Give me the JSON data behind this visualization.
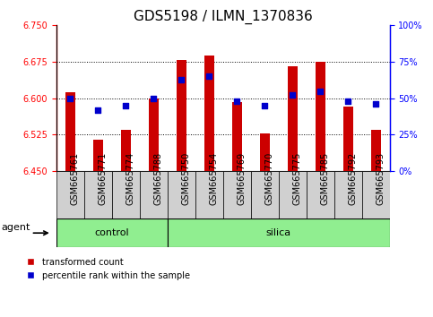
{
  "title": "GDS5198 / ILMN_1370836",
  "samples": [
    "GSM665761",
    "GSM665771",
    "GSM665774",
    "GSM665788",
    "GSM665750",
    "GSM665754",
    "GSM665769",
    "GSM665770",
    "GSM665775",
    "GSM665785",
    "GSM665792",
    "GSM665793"
  ],
  "groups": [
    "control",
    "control",
    "control",
    "control",
    "silica",
    "silica",
    "silica",
    "silica",
    "silica",
    "silica",
    "silica",
    "silica"
  ],
  "transformed_count": [
    6.612,
    6.515,
    6.535,
    6.6,
    6.678,
    6.688,
    6.592,
    6.528,
    6.665,
    6.675,
    6.583,
    6.535
  ],
  "percentile_rank": [
    50,
    42,
    45,
    50,
    63,
    65,
    48,
    45,
    52,
    55,
    48,
    46
  ],
  "ylim_left": [
    6.45,
    6.75
  ],
  "ylim_right": [
    0,
    100
  ],
  "yticks_left": [
    6.45,
    6.525,
    6.6,
    6.675,
    6.75
  ],
  "yticks_right": [
    0,
    25,
    50,
    75,
    100
  ],
  "hlines": [
    6.675,
    6.6,
    6.525
  ],
  "bar_color": "#cc0000",
  "dot_color": "#0000cc",
  "bar_bottom": 6.45,
  "control_label": "control",
  "silica_label": "silica",
  "agent_label": "agent",
  "legend_bar_label": "transformed count",
  "legend_dot_label": "percentile rank within the sample",
  "title_fontsize": 11,
  "tick_fontsize": 7,
  "label_fontsize": 8,
  "green_color": "#90EE90",
  "grey_color": "#d0d0d0",
  "n_control": 4
}
